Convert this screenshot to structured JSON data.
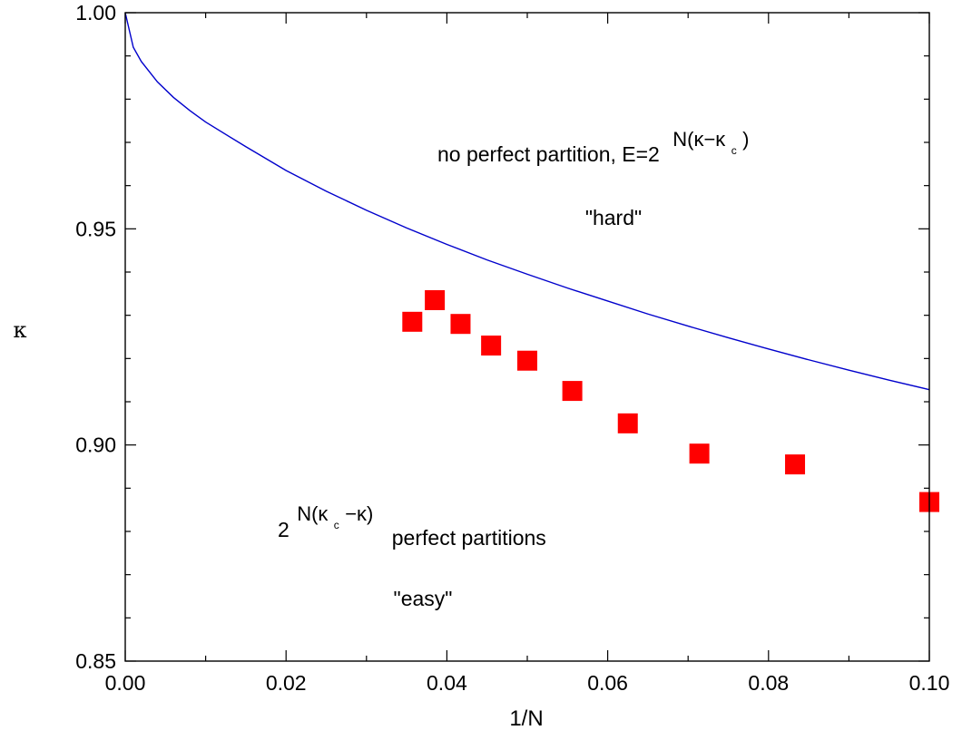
{
  "chart_data": {
    "type": "scatter",
    "xlabel": "1/N",
    "ylabel": "κ",
    "xlim": [
      0.0,
      0.1
    ],
    "ylim": [
      0.85,
      1.0
    ],
    "x_ticks": [
      0.0,
      0.02,
      0.04,
      0.06,
      0.08,
      0.1
    ],
    "x_tick_labels": [
      "0.00",
      "0.02",
      "0.04",
      "0.06",
      "0.08",
      "0.10"
    ],
    "y_ticks": [
      0.85,
      0.9,
      0.95,
      1.0
    ],
    "y_tick_labels": [
      "0.85",
      "0.90",
      "0.95",
      "1.00"
    ],
    "grid": false,
    "series": [
      {
        "kind": "points",
        "marker": "square",
        "color": "#ff0000",
        "x": [
          0.0357,
          0.0385,
          0.0417,
          0.0455,
          0.05,
          0.0556,
          0.0625,
          0.0714,
          0.0833,
          0.1
        ],
        "y": [
          0.9285,
          0.9335,
          0.928,
          0.923,
          0.9195,
          0.9125,
          0.905,
          0.898,
          0.8955,
          0.8868
        ]
      },
      {
        "kind": "curve",
        "color": "#0000cc",
        "x": [
          0.0,
          0.001,
          0.002,
          0.004,
          0.006,
          0.008,
          0.01,
          0.015,
          0.02,
          0.025,
          0.03,
          0.035,
          0.04,
          0.045,
          0.05,
          0.055,
          0.06,
          0.065,
          0.07,
          0.075,
          0.08,
          0.085,
          0.09,
          0.095,
          0.1
        ],
        "y": [
          1.0,
          0.992,
          0.9887,
          0.984,
          0.9804,
          0.9774,
          0.9747,
          0.969,
          0.9635,
          0.9587,
          0.9543,
          0.9502,
          0.9464,
          0.9428,
          0.9395,
          0.9363,
          0.9333,
          0.9303,
          0.9275,
          0.9248,
          0.9222,
          0.9197,
          0.9173,
          0.915,
          0.9128
        ]
      }
    ],
    "annotations": {
      "hard_region": {
        "line1_prefix": "no perfect partition, E=2",
        "line1_exp": "N(κ−κ",
        "line1_exp_sub": "c",
        "line1_exp_close": ")",
        "line2": "\"hard\""
      },
      "easy_region": {
        "base": "2",
        "exp": "N(κ",
        "exp_sub": "c",
        "exp_rest": "−κ)",
        "text": "perfect partitions",
        "line2": "\"easy\""
      }
    }
  }
}
